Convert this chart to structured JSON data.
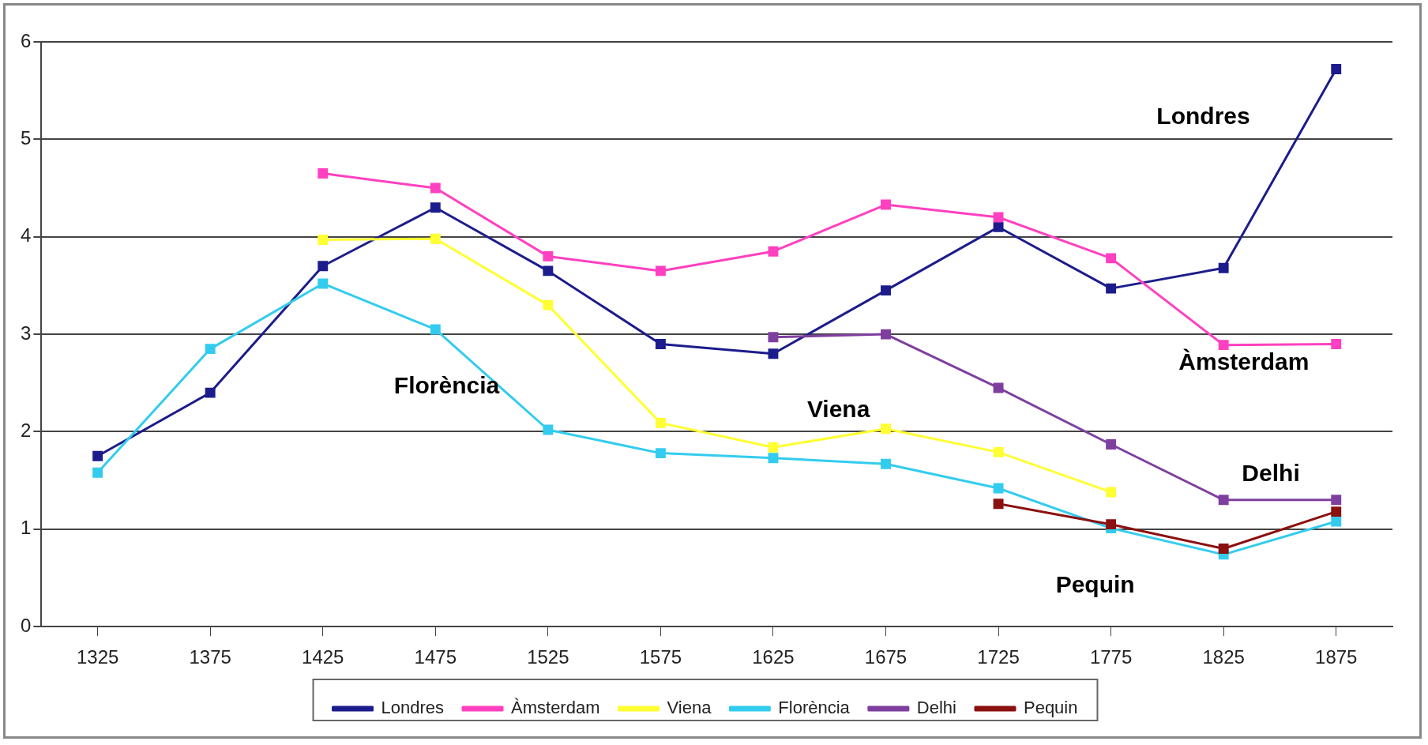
{
  "chart_data": {
    "type": "line",
    "categories": [
      "1325",
      "1375",
      "1425",
      "1475",
      "1525",
      "1575",
      "1625",
      "1675",
      "1725",
      "1775",
      "1825",
      "1875"
    ],
    "series": [
      {
        "name": "Londres",
        "color": "#1c1c8c",
        "values": [
          1.75,
          2.4,
          3.7,
          4.3,
          3.65,
          2.9,
          2.8,
          3.45,
          4.1,
          3.47,
          3.68,
          5.72
        ]
      },
      {
        "name": "Àmsterdam",
        "color": "#ff40c0",
        "values": [
          null,
          null,
          4.65,
          4.5,
          3.8,
          3.65,
          3.85,
          4.33,
          4.2,
          3.78,
          2.89,
          2.9
        ]
      },
      {
        "name": "Viena",
        "color": "#ffff33",
        "values": [
          null,
          null,
          3.97,
          3.98,
          3.3,
          2.09,
          1.84,
          2.03,
          1.79,
          1.38,
          null,
          null
        ]
      },
      {
        "name": "Florència",
        "color": "#33ccee",
        "values": [
          1.58,
          2.85,
          3.52,
          3.05,
          2.02,
          1.78,
          1.73,
          1.67,
          1.42,
          1.01,
          0.74,
          1.08
        ]
      },
      {
        "name": "Delhi",
        "color": "#7f3f9f",
        "values": [
          null,
          null,
          null,
          null,
          null,
          null,
          2.97,
          3.0,
          2.45,
          1.87,
          1.3,
          1.3
        ]
      },
      {
        "name": "Pequin",
        "color": "#8b1010",
        "values": [
          null,
          null,
          null,
          null,
          null,
          null,
          null,
          null,
          1.26,
          1.05,
          0.8,
          1.18
        ]
      }
    ],
    "ylim": [
      0,
      6
    ],
    "yticks": [
      0,
      1,
      2,
      3,
      4,
      5,
      6
    ],
    "grid": "y",
    "legend": "bottom",
    "marker": "square",
    "line_style": "solid",
    "annotations": [
      "Londres",
      "Àmsterdam",
      "Florència",
      "Viena",
      "Delhi",
      "Pequin"
    ]
  }
}
